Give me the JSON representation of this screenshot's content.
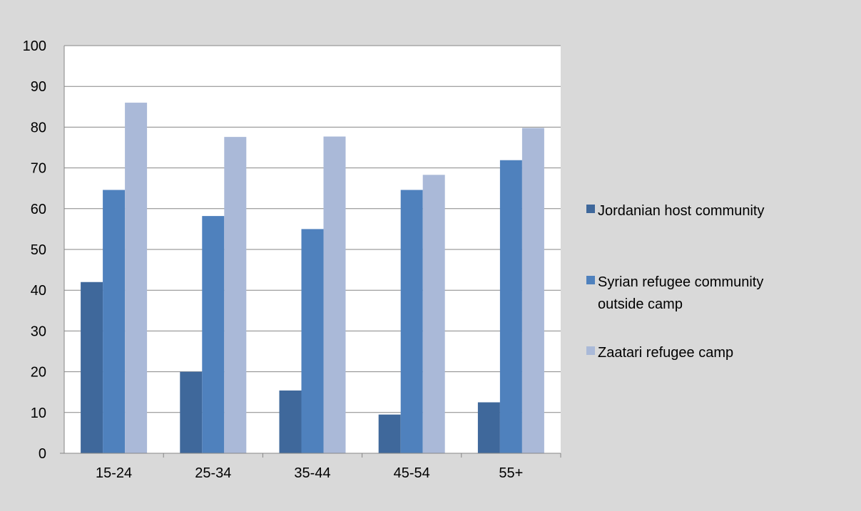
{
  "chart_data": {
    "type": "bar",
    "categories": [
      "15-24",
      "25-34",
      "35-44",
      "45-54",
      "55+"
    ],
    "series": [
      {
        "name": "Jordanian host community",
        "values": [
          42,
          20,
          15.4,
          9.5,
          12.5
        ],
        "color": "#3f689b"
      },
      {
        "name": "Syrian refugee community outside camp",
        "values": [
          64.6,
          58.2,
          55,
          64.6,
          71.9
        ],
        "color": "#4f81bd"
      },
      {
        "name": "Zaatari refugee camp",
        "values": [
          86,
          77.6,
          77.7,
          68.3,
          79.8
        ],
        "color": "#aab9d8"
      }
    ],
    "yticks": [
      "0",
      "10",
      "20",
      "30",
      "40",
      "50",
      "60",
      "70",
      "80",
      "90",
      "100"
    ],
    "ylim": [
      0,
      100
    ],
    "grid": true,
    "legend_position": "right",
    "title": "",
    "xlabel": "",
    "ylabel": ""
  }
}
